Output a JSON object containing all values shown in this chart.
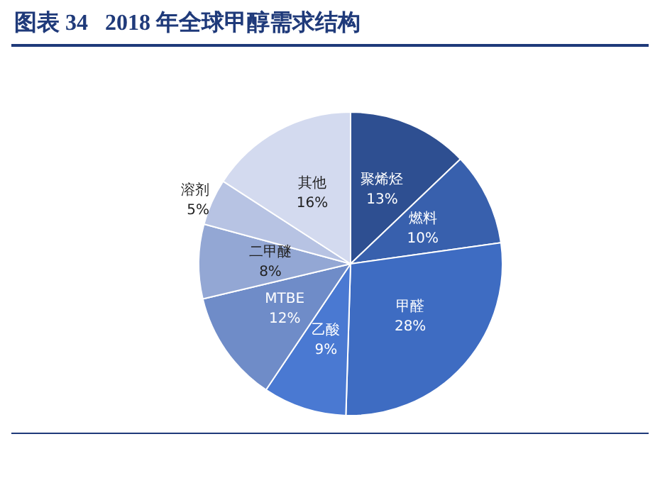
{
  "chart_data": {
    "type": "pie",
    "title": "图表 34   2018 年全球甲醇需求结构",
    "categories": [
      "聚烯烃",
      "燃料",
      "甲醛",
      "乙酸",
      "MTBE",
      "二甲醚",
      "溶剂",
      "其他"
    ],
    "values": [
      13,
      10,
      28,
      9,
      12,
      8,
      5,
      16
    ],
    "value_labels": [
      "13%",
      "10%",
      "28%",
      "9%",
      "12%",
      "8%",
      "5%",
      "16%"
    ],
    "colors": [
      "#2e4f91",
      "#3860ad",
      "#3e6cc2",
      "#4a79d2",
      "#6f8cc8",
      "#93a7d4",
      "#b7c3e3",
      "#d3daef"
    ],
    "legend": false
  }
}
